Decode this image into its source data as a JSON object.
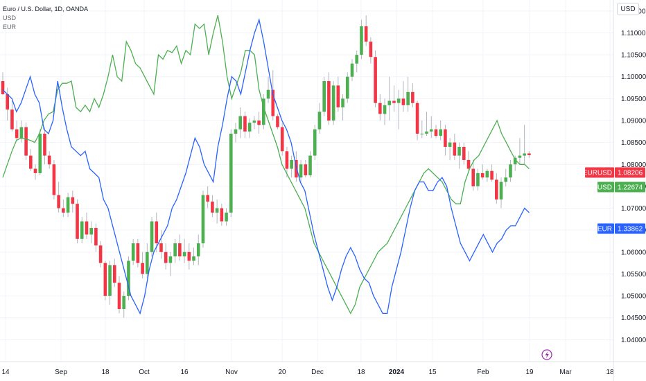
{
  "legend": {
    "title": "Euro / U.S. Dollar, 1D, OANDA",
    "series": [
      "USD",
      "EUR"
    ]
  },
  "currency_button": "USD",
  "price_tags": [
    {
      "label": "EURUSD",
      "value": "1.08206",
      "color": "#f23645"
    },
    {
      "label": "USD",
      "value": "1.22674",
      "color": "#4caf50"
    },
    {
      "label": "EUR",
      "value": "1.33862",
      "color": "#2962ff"
    }
  ],
  "colors": {
    "up": "#4caf50",
    "down": "#f23645",
    "usd_line": "#4caf50",
    "eur_line": "#2962ff",
    "grid": "#f0f3fa",
    "wick": "#b2b5be"
  },
  "icons": {
    "lightning": "lightning-icon"
  },
  "chart_data": {
    "type": "candlestick",
    "symbol": "EURUSD",
    "timeframe": "1D",
    "ylim": [
      1.035,
      1.1175
    ],
    "y_ticks": [
      "1.04000",
      "1.04500",
      "1.05000",
      "1.05500",
      "1.06000",
      "1.06500",
      "1.07000",
      "1.07500",
      "1.08000",
      "1.08500",
      "1.09000",
      "1.09500",
      "1.10000",
      "1.10500",
      "1.11000",
      "1.11500"
    ],
    "x_ticks": [
      "14",
      "Sep",
      "18",
      "Oct",
      "16",
      "Nov",
      "20",
      "Dec",
      "18",
      "2024",
      "15",
      "Feb",
      "19",
      "Mar",
      "18"
    ],
    "x_ticks_bold": [
      "2024"
    ],
    "candles": [
      [
        1.099,
        1.101,
        1.0958,
        1.096
      ],
      [
        1.096,
        1.0975,
        1.09,
        1.0925
      ],
      [
        1.0925,
        1.0945,
        1.0875,
        1.088
      ],
      [
        1.088,
        1.09,
        1.0855,
        1.086
      ],
      [
        1.086,
        1.09,
        1.085,
        1.0885
      ],
      [
        1.0885,
        1.0895,
        1.081,
        1.082
      ],
      [
        1.082,
        1.0835,
        1.0785,
        1.079
      ],
      [
        1.079,
        1.08,
        1.0765,
        1.078
      ],
      [
        1.078,
        1.088,
        1.0775,
        1.087
      ],
      [
        1.087,
        1.0885,
        1.08,
        1.082
      ],
      [
        1.082,
        1.083,
        1.079,
        1.08
      ],
      [
        1.08,
        1.081,
        1.072,
        1.073
      ],
      [
        1.073,
        1.076,
        1.069,
        1.07
      ],
      [
        1.07,
        1.072,
        1.068,
        1.069
      ],
      [
        1.069,
        1.0735,
        1.068,
        1.0725
      ],
      [
        1.0725,
        1.074,
        1.069,
        1.071
      ],
      [
        1.071,
        1.072,
        1.062,
        1.063
      ],
      [
        1.063,
        1.068,
        1.062,
        1.067
      ],
      [
        1.067,
        1.069,
        1.063,
        1.064
      ],
      [
        1.064,
        1.067,
        1.062,
        1.0655
      ],
      [
        1.0655,
        1.0665,
        1.06,
        1.0615
      ],
      [
        1.0615,
        1.0625,
        1.0565,
        1.0575
      ],
      [
        1.0575,
        1.058,
        1.049,
        1.05
      ],
      [
        1.05,
        1.058,
        1.048,
        1.057
      ],
      [
        1.057,
        1.0585,
        1.052,
        1.053
      ],
      [
        1.053,
        1.0545,
        1.046,
        1.047
      ],
      [
        1.047,
        1.051,
        1.045,
        1.05
      ],
      [
        1.05,
        1.059,
        1.049,
        1.058
      ],
      [
        1.058,
        1.063,
        1.057,
        1.062
      ],
      [
        1.062,
        1.063,
        1.0565,
        1.0575
      ],
      [
        1.0575,
        1.06,
        1.054,
        1.055
      ],
      [
        1.055,
        1.062,
        1.054,
        1.06
      ],
      [
        1.06,
        1.068,
        1.059,
        1.067
      ],
      [
        1.067,
        1.069,
        1.06,
        1.062
      ],
      [
        1.062,
        1.065,
        1.0585,
        1.06
      ],
      [
        1.06,
        1.062,
        1.056,
        1.0575
      ],
      [
        1.0575,
        1.06,
        1.0545,
        1.059
      ],
      [
        1.059,
        1.063,
        1.0575,
        1.062
      ],
      [
        1.062,
        1.064,
        1.058,
        1.059
      ],
      [
        1.059,
        1.063,
        1.0575,
        1.06
      ],
      [
        1.06,
        1.062,
        1.056,
        1.058
      ],
      [
        1.058,
        1.061,
        1.057,
        1.059
      ],
      [
        1.059,
        1.064,
        1.057,
        1.062
      ],
      [
        1.062,
        1.074,
        1.061,
        1.073
      ],
      [
        1.073,
        1.075,
        1.07,
        1.0715
      ],
      [
        1.0715,
        1.073,
        1.068,
        1.069
      ],
      [
        1.069,
        1.072,
        1.0665,
        1.07
      ],
      [
        1.07,
        1.071,
        1.066,
        1.067
      ],
      [
        1.067,
        1.07,
        1.066,
        1.069
      ],
      [
        1.069,
        1.088,
        1.068,
        1.087
      ],
      [
        1.087,
        1.0895,
        1.085,
        1.088
      ],
      [
        1.088,
        1.093,
        1.086,
        1.091
      ],
      [
        1.091,
        1.092,
        1.086,
        1.0875
      ],
      [
        1.0875,
        1.0905,
        1.086,
        1.0895
      ],
      [
        1.0895,
        1.091,
        1.088,
        1.09
      ],
      [
        1.09,
        1.092,
        1.087,
        1.089
      ],
      [
        1.089,
        1.096,
        1.088,
        1.095
      ],
      [
        1.095,
        1.1,
        1.094,
        1.097
      ],
      [
        1.097,
        1.1015,
        1.09,
        1.091
      ],
      [
        1.091,
        1.0915,
        1.088,
        1.0885
      ],
      [
        1.0885,
        1.0895,
        1.082,
        1.083
      ],
      [
        1.083,
        1.084,
        1.077,
        1.079
      ],
      [
        1.079,
        1.082,
        1.077,
        1.081
      ],
      [
        1.081,
        1.083,
        1.076,
        1.077
      ],
      [
        1.077,
        1.081,
        1.076,
        1.08
      ],
      [
        1.08,
        1.081,
        1.077,
        1.0775
      ],
      [
        1.0775,
        1.083,
        1.077,
        1.082
      ],
      [
        1.082,
        1.089,
        1.081,
        1.088
      ],
      [
        1.088,
        1.094,
        1.087,
        1.092
      ],
      [
        1.092,
        1.1,
        1.091,
        1.099
      ],
      [
        1.099,
        1.101,
        1.089,
        1.09
      ],
      [
        1.09,
        1.099,
        1.089,
        1.098
      ],
      [
        1.098,
        1.1,
        1.092,
        1.093
      ],
      [
        1.093,
        1.096,
        1.09,
        1.095
      ],
      [
        1.095,
        1.101,
        1.094,
        1.1
      ],
      [
        1.1,
        1.104,
        1.099,
        1.103
      ],
      [
        1.103,
        1.106,
        1.101,
        1.105
      ],
      [
        1.105,
        1.113,
        1.104,
        1.1115
      ],
      [
        1.1115,
        1.114,
        1.107,
        1.108
      ],
      [
        1.108,
        1.109,
        1.103,
        1.1045
      ],
      [
        1.1045,
        1.106,
        1.093,
        1.094
      ],
      [
        1.094,
        1.096,
        1.09,
        1.0915
      ],
      [
        1.0915,
        1.095,
        1.089,
        1.0935
      ],
      [
        1.0935,
        1.1,
        1.09,
        1.0945
      ],
      [
        1.0945,
        1.098,
        1.092,
        1.094
      ],
      [
        1.094,
        1.097,
        1.088,
        1.095
      ],
      [
        1.095,
        1.099,
        1.092,
        1.0935
      ],
      [
        1.0935,
        1.1,
        1.092,
        1.0965
      ],
      [
        1.0965,
        1.0985,
        1.093,
        1.094
      ],
      [
        1.094,
        1.0945,
        1.0855,
        1.087
      ],
      [
        1.087,
        1.09,
        1.086,
        1.087
      ],
      [
        1.087,
        1.092,
        1.0865,
        1.0875
      ],
      [
        1.0875,
        1.091,
        1.086,
        1.088
      ],
      [
        1.088,
        1.089,
        1.086,
        1.0865
      ],
      [
        1.0865,
        1.09,
        1.0855,
        1.088
      ],
      [
        1.088,
        1.089,
        1.082,
        1.084
      ],
      [
        1.084,
        1.086,
        1.081,
        1.085
      ],
      [
        1.085,
        1.087,
        1.081,
        1.082
      ],
      [
        1.082,
        1.085,
        1.079,
        1.084
      ],
      [
        1.084,
        1.085,
        1.08,
        1.081
      ],
      [
        1.081,
        1.083,
        1.078,
        1.079
      ],
      [
        1.079,
        1.081,
        1.074,
        1.075
      ],
      [
        1.075,
        1.079,
        1.074,
        1.078
      ],
      [
        1.078,
        1.08,
        1.0765,
        1.077
      ],
      [
        1.077,
        1.079,
        1.076,
        1.0785
      ],
      [
        1.0785,
        1.08,
        1.076,
        1.0765
      ],
      [
        1.0765,
        1.078,
        1.071,
        1.072
      ],
      [
        1.072,
        1.077,
        1.07,
        1.076
      ],
      [
        1.076,
        1.079,
        1.075,
        1.077
      ],
      [
        1.077,
        1.081,
        1.076,
        1.08
      ],
      [
        1.08,
        1.082,
        1.0785,
        1.0815
      ],
      [
        1.0815,
        1.086,
        1.08,
        1.082
      ],
      [
        1.082,
        1.089,
        1.08,
        1.0825
      ],
      [
        1.0825,
        1.083,
        1.0815,
        1.0821
      ]
    ],
    "series": [
      {
        "name": "USD",
        "color": "#4caf50",
        "values": [
          1.077,
          1.08,
          1.083,
          1.0855,
          1.086,
          1.0858,
          1.0855,
          1.085,
          1.087,
          1.09,
          1.0915,
          1.092,
          1.097,
          1.0985,
          1.0985,
          1.099,
          1.093,
          1.092,
          1.0935,
          1.092,
          1.095,
          1.093,
          1.096,
          1.1,
          1.105,
          1.1,
          1.099,
          1.108,
          1.106,
          1.103,
          1.102,
          1.1,
          1.098,
          1.096,
          1.105,
          1.104,
          1.106,
          1.1055,
          1.107,
          1.103,
          1.106,
          1.105,
          1.112,
          1.111,
          1.112,
          1.105,
          1.11,
          1.114,
          1.108,
          1.1,
          1.095,
          1.098,
          1.101,
          1.106,
          1.106,
          1.105,
          1.097,
          1.093,
          1.09,
          1.087,
          1.084,
          1.08,
          1.078,
          1.076,
          1.074,
          1.072,
          1.07,
          1.066,
          1.062,
          1.06,
          1.058,
          1.056,
          1.054,
          1.052,
          1.05,
          1.048,
          1.046,
          1.048,
          1.052,
          1.054,
          1.056,
          1.058,
          1.06,
          1.061,
          1.062,
          1.064,
          1.066,
          1.068,
          1.07,
          1.072,
          1.074,
          1.076,
          1.078,
          1.079,
          1.078,
          1.077,
          1.076,
          1.074,
          1.072,
          1.071,
          1.071,
          1.076,
          1.079,
          1.081,
          1.082,
          1.084,
          1.086,
          1.088,
          1.09,
          1.087,
          1.085,
          1.083,
          1.081,
          1.08,
          1.08,
          1.079
        ]
      },
      {
        "name": "EUR",
        "color": "#2962ff",
        "values": [
          1.097,
          1.096,
          1.095,
          1.092,
          1.094,
          1.097,
          1.1,
          1.096,
          1.094,
          1.088,
          1.087,
          1.09,
          1.099,
          1.093,
          1.088,
          1.084,
          1.083,
          1.082,
          1.083,
          1.079,
          1.078,
          1.077,
          1.072,
          1.07,
          1.066,
          1.062,
          1.058,
          1.054,
          1.05,
          1.048,
          1.046,
          1.05,
          1.056,
          1.06,
          1.062,
          1.064,
          1.066,
          1.07,
          1.072,
          1.075,
          1.078,
          1.082,
          1.086,
          1.084,
          1.08,
          1.078,
          1.076,
          1.084,
          1.089,
          1.095,
          1.1,
          1.099,
          1.096,
          1.101,
          1.106,
          1.11,
          1.113,
          1.108,
          1.102,
          1.096,
          1.093,
          1.09,
          1.088,
          1.085,
          1.08,
          1.076,
          1.074,
          1.069,
          1.064,
          1.06,
          1.056,
          1.052,
          1.049,
          1.052,
          1.056,
          1.059,
          1.061,
          1.059,
          1.056,
          1.054,
          1.053,
          1.05,
          1.048,
          1.046,
          1.046,
          1.052,
          1.056,
          1.06,
          1.065,
          1.07,
          1.074,
          1.076,
          1.076,
          1.074,
          1.074,
          1.076,
          1.077,
          1.075,
          1.07,
          1.066,
          1.062,
          1.06,
          1.058,
          1.06,
          1.062,
          1.064,
          1.062,
          1.06,
          1.062,
          1.063,
          1.065,
          1.066,
          1.066,
          1.068,
          1.07,
          1.069
        ]
      }
    ]
  }
}
